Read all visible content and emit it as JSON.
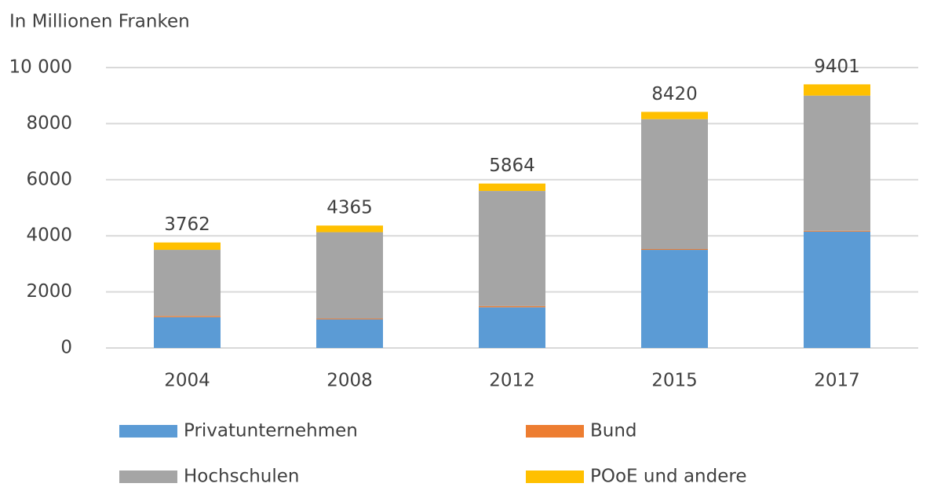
{
  "chart_data": {
    "type": "stacked_bar",
    "subtitle": "In Millionen Franken",
    "categories": [
      "2004",
      "2008",
      "2012",
      "2015",
      "2017"
    ],
    "series": [
      {
        "name": "Privatunternehmen",
        "color": "#5b9bd5",
        "values": [
          1100,
          1020,
          1450,
          3500,
          4150
        ]
      },
      {
        "name": "Bund",
        "color": "#ed7d31",
        "values": [
          40,
          30,
          40,
          30,
          30
        ]
      },
      {
        "name": "Hochschulen",
        "color": "#a5a5a5",
        "values": [
          2360,
          3080,
          4110,
          4630,
          4820
        ]
      },
      {
        "name": "POoE und andere",
        "color": "#ffc000",
        "values": [
          262,
          235,
          264,
          260,
          401
        ]
      }
    ],
    "totals": [
      3762,
      4365,
      5864,
      8420,
      9401
    ],
    "ylim": [
      0,
      10000
    ],
    "yticks": [
      0,
      2000,
      4000,
      6000,
      8000,
      {
        "value": 10000,
        "label": "10 000"
      }
    ],
    "grid": true
  }
}
